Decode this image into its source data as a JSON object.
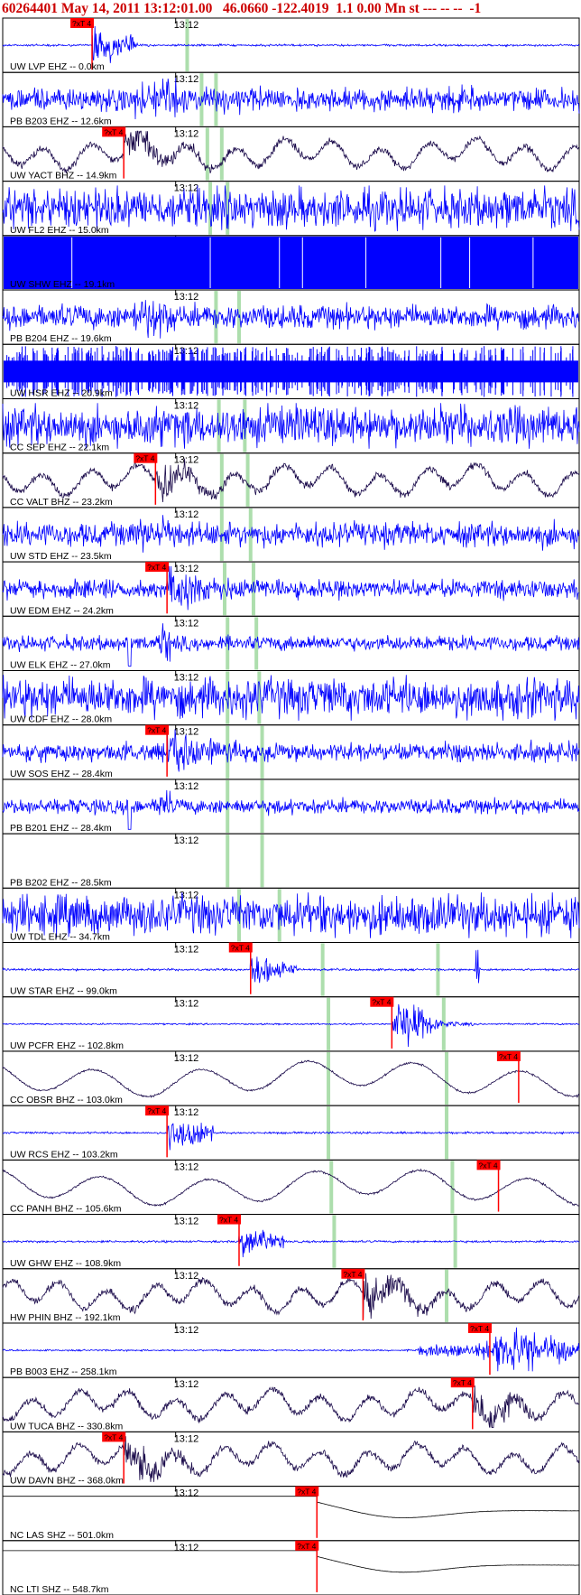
{
  "header": {
    "title": "60264401 May 14, 2011 13:12:01.00   46.0660 -122.4019  1.1 0.00 Mn st --- -- --  -1"
  },
  "chart_data": {
    "type": "seismogram",
    "time_marker_label": "13:12",
    "pick_label": "?xT 4",
    "colors": {
      "title": "#cc0000",
      "ehz_trace": "#0000ff",
      "bhz_trace": "#1a0a4a",
      "shz_trace": "#000000",
      "pick": "#ff0000",
      "phase_line": "#9fd89f",
      "separator": "#000000"
    },
    "traces": [
      {
        "label": "UW LVP EHZ -- 0.0km",
        "channel": "EHZ",
        "style": "quiet_event",
        "pick": 0.155,
        "phase": [
          0.32
        ]
      },
      {
        "label": "PB B203 EHZ -- 12.6km",
        "channel": "EHZ",
        "style": "noise_mid",
        "pick": null,
        "phase": [
          0.345,
          0.37
        ]
      },
      {
        "label": "UW YACT BHZ -- 14.9km",
        "channel": "BHZ",
        "style": "wave_event",
        "pick": 0.21,
        "phase": [
          0.355,
          0.38
        ]
      },
      {
        "label": "UW FL2 EHZ -- 15.0km",
        "channel": "EHZ",
        "style": "noise_high",
        "pick": null,
        "phase": [
          0.36,
          0.39
        ]
      },
      {
        "label": "UW SHW EHZ -- 19.1km",
        "channel": "EHZ",
        "style": "saturated",
        "pick": null,
        "phase": []
      },
      {
        "label": "PB B204 EHZ -- 19.6km",
        "channel": "EHZ",
        "style": "noise_mid",
        "pick": null,
        "phase": [
          0.37,
          0.41
        ]
      },
      {
        "label": "UW HSR EHZ -- 20.9km",
        "channel": "EHZ",
        "style": "spiky",
        "pick": null,
        "phase": []
      },
      {
        "label": "CC SEP EHZ -- 22.1km",
        "channel": "EHZ",
        "style": "noise_high",
        "pick": null,
        "phase": [
          0.375,
          0.42
        ]
      },
      {
        "label": "CC VALT BHZ -- 23.2km",
        "channel": "BHZ",
        "style": "wave_event",
        "pick": 0.265,
        "phase": [
          0.38,
          0.425
        ]
      },
      {
        "label": "UW STD EHZ -- 23.5km",
        "channel": "EHZ",
        "style": "noise_mid",
        "pick": null,
        "phase": [
          0.38,
          0.43
        ]
      },
      {
        "label": "UW EDM EHZ -- 24.2km",
        "channel": "EHZ",
        "style": "noise_event",
        "pick": 0.285,
        "phase": [
          0.385,
          0.435
        ]
      },
      {
        "label": "UW ELK EHZ -- 27.0km",
        "channel": "EHZ",
        "style": "noise_low",
        "pick": null,
        "phase": [
          0.39,
          0.44
        ]
      },
      {
        "label": "UW CDF EHZ -- 28.0km",
        "channel": "EHZ",
        "style": "noise_high",
        "pick": null,
        "phase": [
          0.39,
          0.445
        ]
      },
      {
        "label": "UW SOS EHZ -- 28.4km",
        "channel": "EHZ",
        "style": "noise_event",
        "pick": 0.285,
        "phase": [
          0.39,
          0.45
        ]
      },
      {
        "label": "PB B201 EHZ -- 28.4km",
        "channel": "EHZ",
        "style": "noise_low",
        "pick": null,
        "phase": [
          0.39,
          0.45
        ]
      },
      {
        "label": "PB B202 EHZ -- 28.5km",
        "channel": "EHZ",
        "style": "blank",
        "pick": null,
        "phase": [
          0.39,
          0.45
        ]
      },
      {
        "label": "UW TDL EHZ -- 34.7km",
        "channel": "EHZ",
        "style": "noise_high",
        "pick": null,
        "phase": [
          0.41,
          0.48
        ]
      },
      {
        "label": "UW STAR EHZ -- 99.0km",
        "channel": "EHZ",
        "style": "quiet_event",
        "pick": 0.43,
        "phase": [
          0.555,
          0.755
        ]
      },
      {
        "label": "UW PCFR EHZ -- 102.8km",
        "channel": "EHZ",
        "style": "flat_burst",
        "pick": 0.675,
        "phase": [
          0.565,
          0.765
        ]
      },
      {
        "label": "CC OBSR BHZ -- 103.0km",
        "channel": "BHZ",
        "style": "wave_slow",
        "pick": 0.895,
        "phase": [
          0.565,
          0.77
        ]
      },
      {
        "label": "UW RCS EHZ -- 103.2km",
        "channel": "EHZ",
        "style": "quiet_event",
        "pick": 0.285,
        "phase": [
          0.565,
          0.77
        ]
      },
      {
        "label": "CC PANH BHZ -- 105.6km",
        "channel": "BHZ",
        "style": "wave_slow",
        "pick": 0.86,
        "phase": [
          0.57,
          0.78
        ]
      },
      {
        "label": "UW GHW EHZ -- 108.9km",
        "channel": "EHZ",
        "style": "quiet_event",
        "pick": 0.41,
        "phase": [
          0.575,
          0.785
        ]
      },
      {
        "label": "HW PHIN BHZ -- 192.1km",
        "channel": "BHZ",
        "style": "wave_event",
        "pick": 0.625,
        "phase": [
          0.77
        ]
      },
      {
        "label": "PB B003 EHZ -- 258.1km",
        "channel": "EHZ",
        "style": "flat_burst_late",
        "pick": 0.845,
        "phase": []
      },
      {
        "label": "UW TUCA BHZ -- 330.8km",
        "channel": "BHZ",
        "style": "wave_event",
        "pick": 0.815,
        "phase": []
      },
      {
        "label": "UW DAVN BHZ -- 368.0km",
        "channel": "BHZ",
        "style": "wave_event",
        "pick": 0.21,
        "phase": []
      },
      {
        "label": "NC LAS SHZ -- 501.0km",
        "channel": "SHZ",
        "style": "step",
        "pick": 0.545,
        "phase": []
      },
      {
        "label": "NC LTI SHZ -- 548.7km",
        "channel": "SHZ",
        "style": "step",
        "pick": 0.545,
        "phase": []
      }
    ]
  }
}
